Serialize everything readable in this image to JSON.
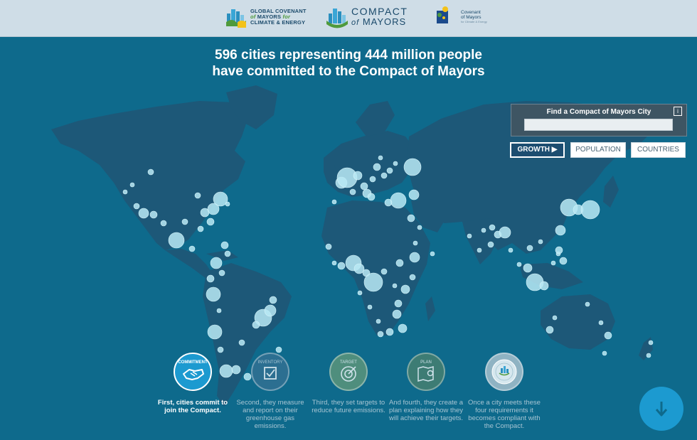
{
  "header": {
    "logo_gc": {
      "line1": "GLOBAL COVENANT",
      "line2a": "of",
      "line2b": "MAYORS",
      "line2c": "for",
      "line3": "CLIMATE & ENERGY"
    },
    "logo_cm": {
      "line1": "COMPACT",
      "line2a": "of",
      "line2b": "MAYORS"
    },
    "logo_cov": {
      "line1": "Covenant",
      "line2": "of Mayors",
      "line3": "for Climate & Energy"
    }
  },
  "headline": {
    "line1": "596 cities representing 444 million people",
    "line2": "have committed to the Compact of Mayors"
  },
  "finder": {
    "title": "Find a Compact of Mayors City",
    "info": "i",
    "placeholder": ""
  },
  "toggles": {
    "growth": "GROWTH ▶",
    "population": "POPULATION",
    "countries": "COUNTRIES"
  },
  "steps": [
    {
      "icon_label": "COMMITMENT",
      "caption": "First, cities commit to join the Compact."
    },
    {
      "icon_label": "INVENTORY",
      "caption": "Second, they measure and report on their greenhouse gas emissions."
    },
    {
      "icon_label": "TARGET",
      "caption": "Third, they set targets to reduce future emissions."
    },
    {
      "icon_label": "PLAN",
      "caption": "And fourth, they create a plan explaining how they will achieve their targets."
    },
    {
      "icon_label": "",
      "caption": "Once a city meets these four requirements it becomes compliant with the Compact."
    }
  ],
  "colors": {
    "ocean": "#0e6a8c",
    "land": "#1d5878",
    "city": "#b9e9f4",
    "accent_blue": "#1c9ad0",
    "inventory": "#2c6f91",
    "target": "#4f8e7d",
    "plan": "#3d7c74"
  },
  "icons": {
    "step1": "handshake-icon",
    "step2": "checkbox-icon",
    "step3": "target-icon",
    "step4": "map-pin-icon",
    "step5": "compliance-badge-icon",
    "scroll": "arrow-down-icon"
  }
}
